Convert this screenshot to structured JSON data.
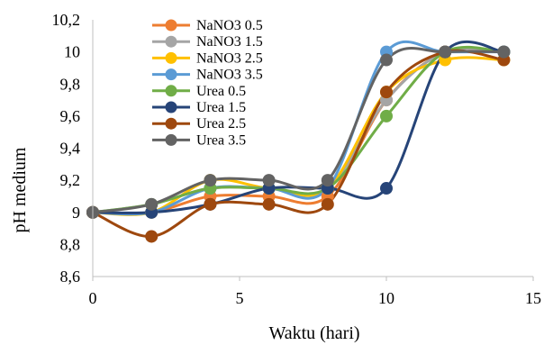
{
  "chart_data": {
    "type": "line",
    "title": "",
    "xlabel": "Waktu (hari)",
    "ylabel": "pH medium",
    "xlim": [
      0,
      15
    ],
    "ylim": [
      8.6,
      10.2
    ],
    "xticks": [
      0,
      5,
      10,
      15
    ],
    "xtick_labels": [
      "0",
      "5",
      "10",
      "15"
    ],
    "yticks": [
      8.6,
      8.8,
      9.0,
      9.2,
      9.4,
      9.6,
      9.8,
      10.0,
      10.2
    ],
    "ytick_labels": [
      "8,6",
      "8,8",
      "9",
      "9,2",
      "9,4",
      "9,6",
      "9,8",
      "10",
      "10,2"
    ],
    "grid": false,
    "legend_position": "top-left",
    "smooth_lines": true,
    "x": [
      0,
      2,
      4,
      6,
      8,
      10,
      12,
      14
    ],
    "series": [
      {
        "name": "NaNO3 0.5",
        "color": "#ED7D31",
        "values": [
          9.0,
          9.0,
          9.1,
          9.1,
          9.1,
          9.7,
          10.0,
          10.0
        ]
      },
      {
        "name": "NaNO3 1.5",
        "color": "#A5A5A5",
        "values": [
          9.0,
          9.05,
          9.15,
          9.15,
          9.15,
          9.7,
          10.0,
          10.0
        ]
      },
      {
        "name": "NaNO3 2.5",
        "color": "#FFC000",
        "values": [
          9.0,
          9.0,
          9.2,
          9.15,
          9.15,
          9.75,
          9.95,
          9.95
        ]
      },
      {
        "name": "NaNO3 3.5",
        "color": "#5B9BD5",
        "values": [
          9.0,
          9.0,
          9.15,
          9.15,
          9.15,
          10.0,
          10.0,
          10.0
        ]
      },
      {
        "name": "Urea 0.5",
        "color": "#70AD47",
        "values": [
          9.0,
          9.05,
          9.15,
          9.15,
          9.15,
          9.6,
          10.0,
          10.0
        ]
      },
      {
        "name": "Urea 1.5",
        "color": "#264478",
        "values": [
          9.0,
          9.0,
          9.05,
          9.15,
          9.15,
          9.15,
          10.0,
          10.0
        ]
      },
      {
        "name": "Urea 2.5",
        "color": "#9E480E",
        "values": [
          9.0,
          8.85,
          9.05,
          9.05,
          9.05,
          9.75,
          10.0,
          9.95
        ]
      },
      {
        "name": "Urea 3.5",
        "color": "#636363",
        "values": [
          9.0,
          9.05,
          9.2,
          9.2,
          9.2,
          9.95,
          10.0,
          10.0
        ]
      }
    ]
  }
}
